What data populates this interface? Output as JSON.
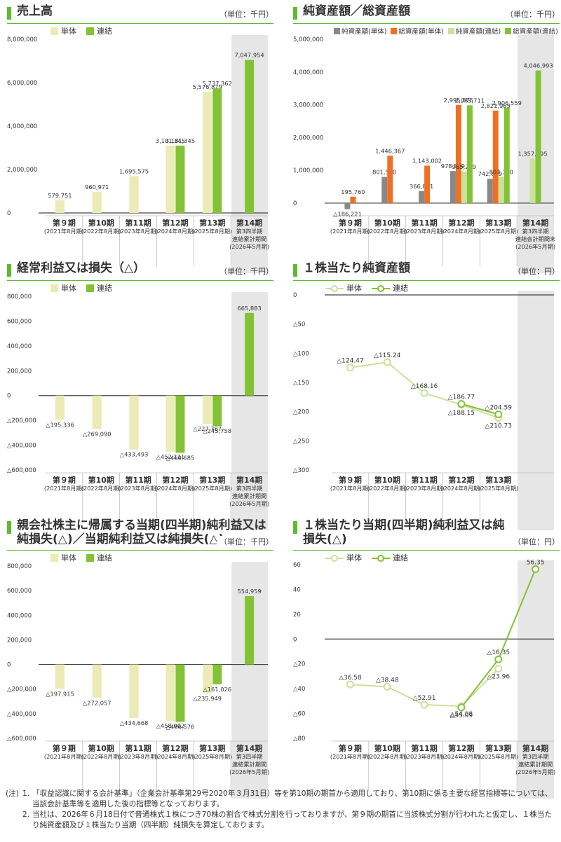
{
  "colors": {
    "tan": "#eceab5",
    "green": "#82c234",
    "gray": "#888888",
    "orange": "#ef7024",
    "lightgreen": "#cbe09b",
    "band": "#e6e6e6",
    "baseline": "#444444",
    "accent": "#5bbd2b"
  },
  "chart_data": [
    {
      "id": "sales",
      "type": "bar",
      "title": "売上高",
      "unit": "（単位：千円）",
      "categories": [
        [
          "第９期",
          "(2021年8月期)"
        ],
        [
          "第10期",
          "(2022年8月期)"
        ],
        [
          "第11期",
          "(2023年8月期)"
        ],
        [
          "第12期",
          "(2024年8月期)"
        ],
        [
          "第13期",
          "(2025年8月期)"
        ],
        [
          "第14期",
          "第3四半期",
          "連結累計期間",
          "(2026年5月期)"
        ]
      ],
      "series": [
        {
          "name": "単体",
          "color": "tan",
          "values": [
            579751,
            960971,
            1695575,
            3101345,
            5576879,
            null
          ],
          "labels": [
            "579,751",
            "960,971",
            "1,695,575",
            "3,101,345",
            "5,576,879",
            ""
          ]
        },
        {
          "name": "連結",
          "color": "green",
          "values": [
            null,
            null,
            null,
            3101345,
            5737362,
            7047954
          ],
          "labels": [
            "",
            "",
            "",
            "3,101,345",
            "5,737,362",
            "7,047,954"
          ]
        }
      ],
      "ylim": [
        0,
        8000000
      ],
      "yticks": [
        0,
        2000000,
        4000000,
        6000000,
        8000000
      ],
      "ytick_labels": [
        "0",
        "2,000,000",
        "4,000,000",
        "6,000,000",
        "8,000,000"
      ],
      "legend": "top-left"
    },
    {
      "id": "assets",
      "type": "bar",
      "title": "純資産額／総資産額",
      "unit": "（単位：千円）",
      "categories": [
        [
          "第９期",
          "(2021年8月期)"
        ],
        [
          "第10期",
          "(2022年8月期)"
        ],
        [
          "第11期",
          "(2023年8月期)"
        ],
        [
          "第12期",
          "(2024年8月期)"
        ],
        [
          "第13期",
          "(2025年8月期)"
        ],
        [
          "第14期",
          "第3四半期",
          "連結会計期間末",
          "(2026年5月期)"
        ]
      ],
      "series": [
        {
          "name": "純資産額(単体)",
          "color": "gray",
          "values": [
            -186221,
            801530,
            366861,
            978839,
            742889,
            null
          ],
          "labels": [
            "△186,221",
            "801,530",
            "366,861",
            "978,839",
            "742,889",
            ""
          ]
        },
        {
          "name": "総資産額(単体)",
          "color": "orange",
          "values": [
            195760,
            1446367,
            1143002,
            2995575,
            2821965,
            null
          ],
          "labels": [
            "195,760",
            "1,446,367",
            "1,143,002",
            "2,995,575",
            "2,821,965",
            ""
          ]
        },
        {
          "name": "純資産額(連結)",
          "color": "lightgreen",
          "values": [
            null,
            null,
            null,
            965269,
            803380,
            1357295
          ],
          "labels": [
            "",
            "",
            "",
            "965,269",
            "803,380",
            "1,357,295"
          ]
        },
        {
          "name": "総資産額(連結)",
          "color": "green",
          "values": [
            null,
            null,
            null,
            2983711,
            2906559,
            4046993
          ],
          "labels": [
            "",
            "",
            "",
            "2,983,711",
            "2,906,559",
            "4,046,993"
          ]
        }
      ],
      "ylim": [
        -300000,
        5000000
      ],
      "yticks": [
        0,
        1000000,
        2000000,
        3000000,
        4000000,
        5000000
      ],
      "ytick_labels": [
        "0",
        "1,000,000",
        "2,000,000",
        "3,000,000",
        "4,000,000",
        "5,000,000"
      ],
      "legend": "top"
    },
    {
      "id": "ordinary",
      "type": "bar",
      "title": "経常利益又は損失（△）",
      "unit": "（単位：千円）",
      "categories": [
        [
          "第９期",
          "(2021年8月期)"
        ],
        [
          "第10期",
          "(2022年8月期)"
        ],
        [
          "第11期",
          "(2023年8月期)"
        ],
        [
          "第12期",
          "(2024年8月期)"
        ],
        [
          "第13期",
          "(2025年8月期)"
        ],
        [
          "第14期",
          "第3四半期",
          "連結累計期間",
          "(2026年5月期)"
        ]
      ],
      "series": [
        {
          "name": "単体",
          "color": "tan",
          "values": [
            -195336,
            -269090,
            -433493,
            -452111,
            -227787,
            null
          ],
          "labels": [
            "△195,336",
            "△269,090",
            "△433,493",
            "△452,111",
            "△227,787",
            ""
          ]
        },
        {
          "name": "連結",
          "color": "green",
          "values": [
            null,
            null,
            null,
            -460685,
            -245758,
            665883
          ],
          "labels": [
            "",
            "",
            "",
            "△460,685",
            "△245,758",
            "665,883"
          ]
        }
      ],
      "ylim": [
        -600000,
        800000
      ],
      "yticks": [
        -600000,
        -400000,
        -200000,
        0,
        200000,
        400000,
        600000,
        800000
      ],
      "ytick_labels": [
        "△600,000",
        "△400,000",
        "△200,000",
        "0",
        "200,000",
        "400,000",
        "600,000",
        "800,000"
      ],
      "legend": "top-left"
    },
    {
      "id": "bps",
      "type": "line",
      "title": "１株当たり純資産額",
      "unit": "（単位：円）",
      "categories": [
        [
          "第９期",
          "(2021年8月期)"
        ],
        [
          "第10期",
          "(2022年8月期)"
        ],
        [
          "第11期",
          "(2023年8月期)"
        ],
        [
          "第12期",
          "(2024年8月期)"
        ],
        [
          "第13期",
          "(2025年8月期)"
        ]
      ],
      "series": [
        {
          "name": "単体",
          "color": "lightgreen",
          "values": [
            -124.47,
            -115.24,
            -168.16,
            -188.15,
            -210.73
          ],
          "labels": [
            "△124.47",
            "△115.24",
            "△168.16",
            "△188.15",
            "△210.73"
          ]
        },
        {
          "name": "連結",
          "color": "green",
          "values": [
            null,
            null,
            null,
            -186.77,
            -204.59
          ],
          "labels": [
            "",
            "",
            "",
            "△186.77",
            "△204.59"
          ]
        }
      ],
      "ylim": [
        -300,
        0
      ],
      "yticks": [
        -300,
        -250,
        -200,
        -150,
        -100,
        -50,
        0
      ],
      "ytick_labels": [
        "△300",
        "△250",
        "△200",
        "△150",
        "△100",
        "△50",
        "0"
      ],
      "legend": "top-left"
    },
    {
      "id": "netincome",
      "type": "bar",
      "title": "親会社株主に帰属する当期(四半期)純利益又は純損失(△)／当期純利益又は純損失(△)",
      "unit": "（単位：千円）",
      "categories": [
        [
          "第９期",
          "(2021年8月期)"
        ],
        [
          "第10期",
          "(2022年8月期)"
        ],
        [
          "第11期",
          "(2023年8月期)"
        ],
        [
          "第12期",
          "(2024年8月期)"
        ],
        [
          "第13期",
          "(2025年8月期)"
        ],
        [
          "第14期",
          "第3四半期",
          "連結累計期間",
          "(2026年5月期)"
        ]
      ],
      "series": [
        {
          "name": "単体",
          "color": "tan",
          "values": [
            -197915,
            -272057,
            -434668,
            -458002,
            -235949,
            null
          ],
          "labels": [
            "△197,915",
            "△272,057",
            "△434,668",
            "△458,002",
            "△235,949",
            ""
          ]
        },
        {
          "name": "連結",
          "color": "green",
          "values": [
            null,
            null,
            null,
            -466576,
            -161026,
            554959
          ],
          "labels": [
            "",
            "",
            "",
            "△466,576",
            "△161,026",
            "554,959"
          ]
        }
      ],
      "ylim": [
        -600000,
        800000
      ],
      "yticks": [
        -600000,
        -400000,
        -200000,
        0,
        200000,
        400000,
        600000,
        800000
      ],
      "ytick_labels": [
        "△600,000",
        "△400,000",
        "△200,000",
        "0",
        "200,000",
        "400,000",
        "600,000",
        "800,000"
      ],
      "legend": "top-left"
    },
    {
      "id": "eps",
      "type": "line",
      "title": "１株当たり当期(四半期)純利益又は純損失(△)",
      "unit": "（単位：円）",
      "categories": [
        [
          "第９期",
          "(2021年8月期)"
        ],
        [
          "第10期",
          "(2022年8月期)"
        ],
        [
          "第11期",
          "(2023年8月期)"
        ],
        [
          "第12期",
          "(2024年8月期)"
        ],
        [
          "第13期",
          "(2025年8月期)"
        ],
        [
          "第14期",
          "第3四半期",
          "連結累計期間",
          "(2026年5月期)"
        ]
      ],
      "series": [
        {
          "name": "単体",
          "color": "lightgreen",
          "values": [
            -36.58,
            -38.48,
            -52.91,
            -54.08,
            -23.96,
            null
          ],
          "labels": [
            "△36.58",
            "△38.48",
            "△52.91",
            "△54.08",
            "△23.96",
            ""
          ]
        },
        {
          "name": "連結",
          "color": "green",
          "values": [
            null,
            null,
            null,
            -55.09,
            -16.35,
            56.35
          ],
          "labels": [
            "",
            "",
            "",
            "△55.09",
            "△16.35",
            "56.35"
          ]
        }
      ],
      "ylim": [
        -80,
        60
      ],
      "yticks": [
        -80,
        -60,
        -40,
        -20,
        0,
        20,
        40,
        60
      ],
      "ytick_labels": [
        "△80",
        "△60",
        "△40",
        "△20",
        "0",
        "20",
        "40",
        "60"
      ],
      "legend": "top-left"
    }
  ],
  "notes": {
    "prefix": "(注)",
    "items": [
      {
        "num": "1.",
        "text": "「収益認識に関する会計基準」（企業会計基準第29号2020年３月31日）等を第10期の期首から適用しており、第10期に係る主要な経営指標等については、当該会計基準等を適用した後の指標等となっております。"
      },
      {
        "num": "2.",
        "text": "当社は、2026年６月18日付で普通株式１株につき70株の割合で株式分割を行っておりますが、第９期の期首に当該株式分割が行われたと仮定し、１株当たり純資産額及び１株当たり当期（四半期）純損失を算定しております。"
      }
    ]
  }
}
